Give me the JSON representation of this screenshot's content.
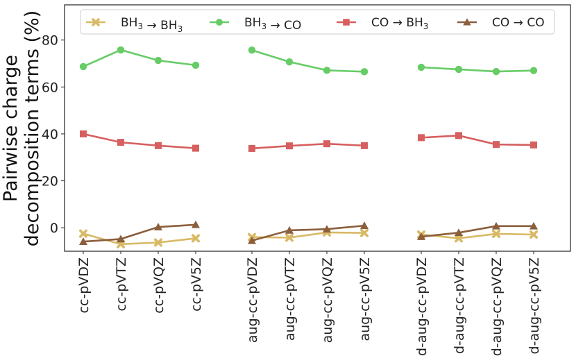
{
  "chart_data": {
    "type": "line",
    "ylabel_lines": [
      "Pairwise charge",
      "decomposition terms (%)"
    ],
    "ylim": [
      -10,
      95
    ],
    "yticks": [
      0,
      20,
      40,
      60,
      80
    ],
    "grid": false,
    "legend_position": "top",
    "groups": [
      {
        "categories": [
          "cc-pVDZ",
          "cc-pVTZ",
          "cc-pVQZ",
          "cc-pV5Z"
        ]
      },
      {
        "categories": [
          "aug-cc-pVDZ",
          "aug-cc-pVTZ",
          "aug-cc-pVQZ",
          "aug-cc-pV5Z"
        ]
      },
      {
        "categories": [
          "d-aug-cc-pVDZ",
          "d-aug-cc-pVTZ",
          "d-aug-cc-pVQZ",
          "d-aug-cc-pV5Z"
        ]
      }
    ],
    "series": [
      {
        "name_main": "BH",
        "name_sub": "3",
        "name_arrow": " → ",
        "name_main2": "BH",
        "name_sub2": "3",
        "color": "#d8b965",
        "marker": "x",
        "values": [
          [
            -2.5,
            -7.0,
            -6.3,
            -4.5
          ],
          [
            -4.0,
            -4.2,
            -2.0,
            -2.2
          ],
          [
            -2.9,
            -4.5,
            -2.6,
            -2.9
          ]
        ]
      },
      {
        "name_main": "BH",
        "name_sub": "3",
        "name_arrow": " → ",
        "name_main2": "CO",
        "name_sub2": "",
        "color": "#66cc66",
        "marker": "circle",
        "values": [
          [
            68.7,
            75.8,
            71.3,
            69.3
          ],
          [
            75.7,
            70.7,
            67.1,
            66.5
          ],
          [
            68.4,
            67.5,
            66.6,
            67.0
          ]
        ]
      },
      {
        "name_main": "CO",
        "name_sub": "",
        "name_arrow": " → ",
        "name_main2": "BH",
        "name_sub2": "3",
        "color": "#d65f5f",
        "marker": "square",
        "values": [
          [
            40.0,
            36.4,
            35.0,
            33.9
          ],
          [
            33.8,
            34.9,
            35.8,
            35.0
          ],
          [
            38.4,
            39.3,
            35.5,
            35.3
          ]
        ]
      },
      {
        "name_main": "CO",
        "name_sub": "",
        "name_arrow": " → ",
        "name_main2": "CO",
        "name_sub2": "",
        "color": "#8b5e3c",
        "marker": "triangle",
        "values": [
          [
            -5.9,
            -4.8,
            0.3,
            1.3
          ],
          [
            -5.5,
            -1.1,
            -0.6,
            0.9
          ],
          [
            -3.8,
            -2.1,
            0.7,
            0.7
          ]
        ]
      }
    ]
  }
}
